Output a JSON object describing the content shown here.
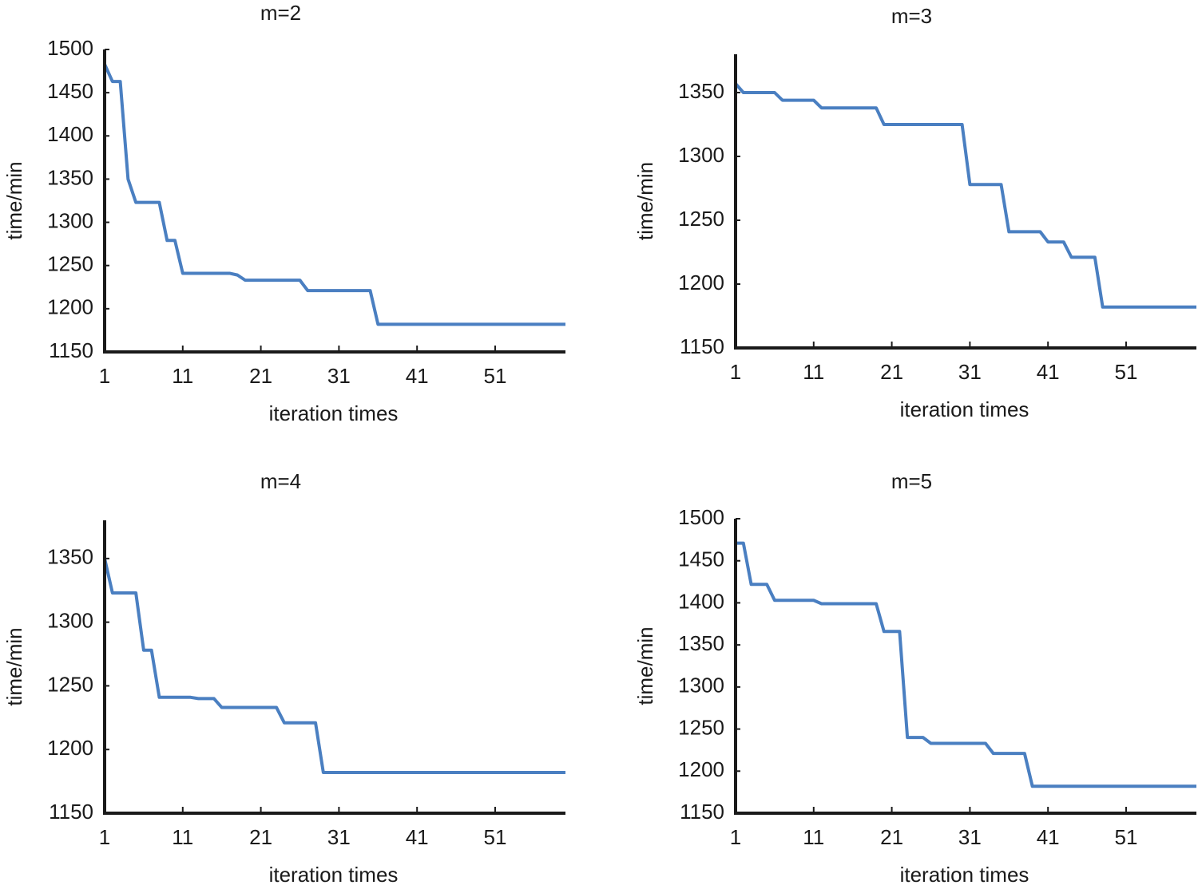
{
  "chart_data": [
    {
      "type": "line",
      "title": "m=2",
      "xlabel": "iteration times",
      "ylabel": "time/min",
      "x": [
        1,
        2,
        3,
        4,
        5,
        8,
        9,
        10,
        11,
        17,
        18,
        19,
        26,
        27,
        35,
        36,
        60
      ],
      "values": [
        1483,
        1463,
        1463,
        1350,
        1323,
        1323,
        1279,
        1279,
        1241,
        1241,
        1239,
        1233,
        1233,
        1221,
        1221,
        1182,
        1182
      ],
      "color": "#4a7fc1",
      "xlim": [
        1,
        60
      ],
      "xticks": [
        1,
        11,
        21,
        31,
        41,
        51
      ],
      "ylim": [
        1150,
        1500
      ],
      "yticks": [
        1150,
        1200,
        1250,
        1300,
        1350,
        1400,
        1450,
        1500
      ]
    },
    {
      "type": "line",
      "title": "m=3",
      "xlabel": "iteration times",
      "ylabel": "time/min",
      "x": [
        1,
        2,
        6,
        7,
        11,
        12,
        19,
        20,
        30,
        31,
        35,
        36,
        40,
        41,
        43,
        44,
        47,
        48,
        60
      ],
      "values": [
        1357,
        1350,
        1350,
        1344,
        1344,
        1338,
        1338,
        1325,
        1325,
        1278,
        1278,
        1241,
        1241,
        1233,
        1233,
        1221,
        1221,
        1182,
        1182
      ],
      "color": "#4a7fc1",
      "xlim": [
        1,
        60
      ],
      "xticks": [
        1,
        11,
        21,
        31,
        41,
        51
      ],
      "ylim": [
        1150,
        1380
      ],
      "yticks": [
        1150,
        1200,
        1250,
        1300,
        1350
      ]
    },
    {
      "type": "line",
      "title": "m=4",
      "xlabel": "iteration times",
      "ylabel": "time/min",
      "x": [
        1,
        2,
        5,
        6,
        7,
        8,
        12,
        13,
        15,
        16,
        23,
        24,
        28,
        29,
        60
      ],
      "values": [
        1350,
        1323,
        1323,
        1278,
        1278,
        1241,
        1241,
        1240,
        1240,
        1233,
        1233,
        1221,
        1221,
        1182,
        1182
      ],
      "color": "#4a7fc1",
      "xlim": [
        1,
        60
      ],
      "xticks": [
        1,
        11,
        21,
        31,
        41,
        51
      ],
      "ylim": [
        1150,
        1380
      ],
      "yticks": [
        1150,
        1200,
        1250,
        1300,
        1350
      ]
    },
    {
      "type": "line",
      "title": "m=5",
      "xlabel": "iteration times",
      "ylabel": "time/min",
      "x": [
        1,
        2,
        3,
        5,
        6,
        11,
        12,
        19,
        20,
        22,
        23,
        25,
        26,
        33,
        34,
        38,
        39,
        60
      ],
      "values": [
        1471,
        1471,
        1422,
        1422,
        1403,
        1403,
        1399,
        1399,
        1366,
        1366,
        1240,
        1240,
        1233,
        1233,
        1221,
        1221,
        1182,
        1182
      ],
      "color": "#4a7fc1",
      "xlim": [
        1,
        60
      ],
      "xticks": [
        1,
        11,
        21,
        31,
        41,
        51
      ],
      "ylim": [
        1150,
        1500
      ],
      "yticks": [
        1150,
        1200,
        1250,
        1300,
        1350,
        1400,
        1450,
        1500
      ]
    }
  ]
}
